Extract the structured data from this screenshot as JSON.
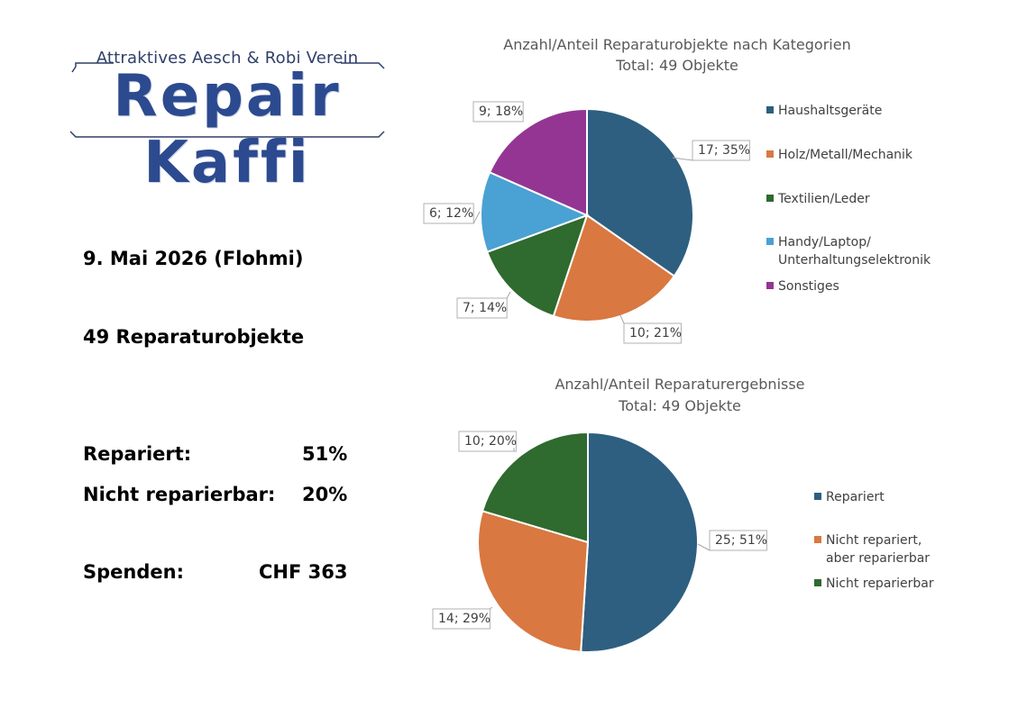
{
  "logo": {
    "tagline": "Attraktives Aesch & Robi Verein",
    "wordmark": "Repair Kaffi"
  },
  "summary": {
    "date": "9. Mai 2026 (Flohmi)",
    "objects": "49 Reparaturobjekte",
    "repaired_label": "Repariert:",
    "repaired_value": "51%",
    "not_repairable_label": "Nicht reparierbar:",
    "not_repairable_value": "20%",
    "donations_label": "Spenden:",
    "donations_value": "CHF 363"
  },
  "chart_data": [
    {
      "type": "pie",
      "title": "Anzahl/Anteil Reparaturobjekte nach Kategorien",
      "subtitle": "Total: 49 Objekte",
      "categories": [
        "Haushaltsgeräte",
        "Holz/Metall/Mechanik",
        "Textilien/Leder",
        "Handy/Laptop/ Unterhaltungselektronik",
        "Sonstiges"
      ],
      "legend_lines": [
        [
          "Haushaltsgeräte"
        ],
        [
          "Holz/Metall/Mechanik"
        ],
        [
          "Textilien/Leder"
        ],
        [
          "Handy/Laptop/",
          "Unterhaltungselektronik"
        ],
        [
          "Sonstiges"
        ]
      ],
      "values": [
        17,
        10,
        7,
        6,
        9
      ],
      "data_labels": [
        "17; 35%",
        "10; 21%",
        "7; 14%",
        "6; 12%",
        "9; 18%"
      ],
      "colors": [
        "#2e5f80",
        "#d97841",
        "#2f6a2f",
        "#4aa1d3",
        "#943593"
      ],
      "legend": "right"
    },
    {
      "type": "pie",
      "title": "Anzahl/Anteil Reparaturergebnisse",
      "subtitle": "Total: 49 Objekte",
      "categories": [
        "Repariert",
        "Nicht repariert, aber reparierbar",
        "Nicht reparierbar"
      ],
      "legend_lines": [
        [
          "Repariert"
        ],
        [
          "Nicht repariert,",
          "aber reparierbar"
        ],
        [
          "Nicht reparierbar"
        ]
      ],
      "values": [
        25,
        14,
        10
      ],
      "data_labels": [
        "25; 51%",
        "14; 29%",
        "10; 20%"
      ],
      "colors": [
        "#2e5f80",
        "#d97841",
        "#2f6a2f"
      ],
      "legend": "right"
    }
  ]
}
